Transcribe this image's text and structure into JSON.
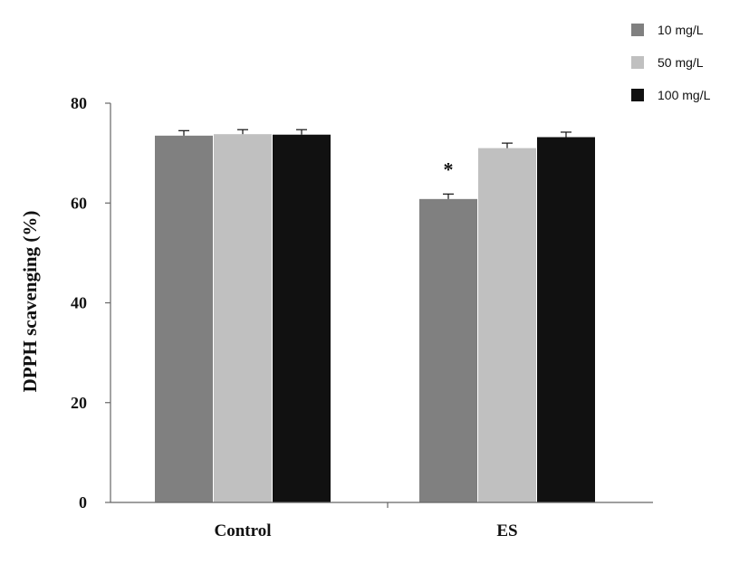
{
  "chart_data": {
    "type": "bar",
    "categories": [
      "Control",
      "ES"
    ],
    "series": [
      {
        "name": "10 mg/L",
        "color": "#808080",
        "values": [
          73.5,
          60.8
        ],
        "errors": [
          1.0,
          1.0
        ]
      },
      {
        "name": "50 mg/L",
        "color": "#c0c0c0",
        "values": [
          73.8,
          71.0
        ],
        "errors": [
          0.9,
          1.0
        ]
      },
      {
        "name": "100 mg/L",
        "color": "#111111",
        "values": [
          73.7,
          73.2
        ],
        "errors": [
          1.0,
          1.0
        ]
      }
    ],
    "ylabel": "DPPH scavenging (%)",
    "ylim": [
      0,
      80
    ],
    "yticks": [
      0,
      20,
      40,
      60,
      80
    ],
    "ytick_labels": [
      "0",
      "20",
      "40",
      "60",
      "80"
    ],
    "legend_position": "top-right",
    "grid": false,
    "annotations": [
      {
        "text": "*",
        "category": "ES",
        "series": "10 mg/L"
      }
    ]
  }
}
